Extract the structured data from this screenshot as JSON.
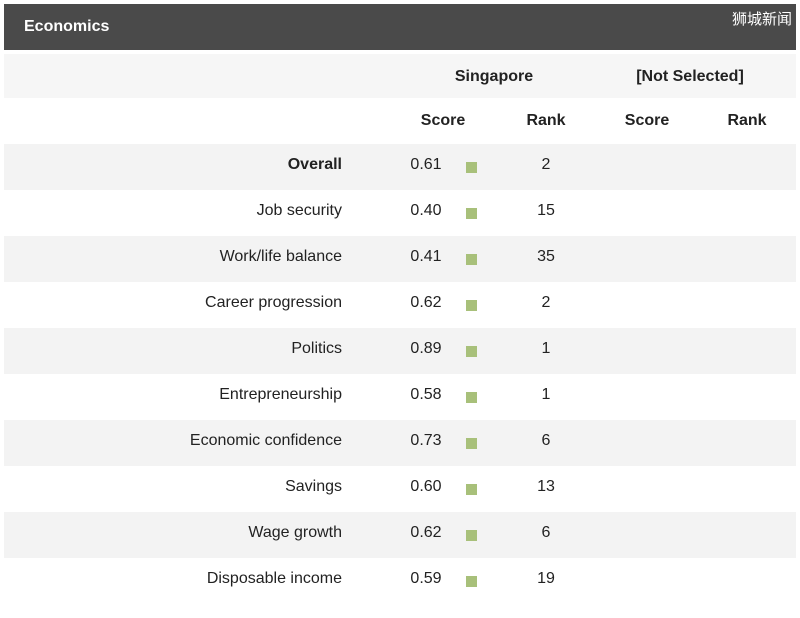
{
  "header": {
    "title": "Economics"
  },
  "watermark": "狮城新闻",
  "columns": {
    "group1": "Singapore",
    "group2": "[Not Selected]",
    "score": "Score",
    "rank": "Rank"
  },
  "colors": {
    "swatch": "#a8c07a",
    "header_bg": "#4a4a4a"
  },
  "rows": [
    {
      "label": "Overall",
      "score": "0.61",
      "rank": "2"
    },
    {
      "label": "Job security",
      "score": "0.40",
      "rank": "15"
    },
    {
      "label": "Work/life balance",
      "score": "0.41",
      "rank": "35"
    },
    {
      "label": "Career progression",
      "score": "0.62",
      "rank": "2"
    },
    {
      "label": "Politics",
      "score": "0.89",
      "rank": "1"
    },
    {
      "label": "Entrepreneurship",
      "score": "0.58",
      "rank": "1"
    },
    {
      "label": "Economic confidence",
      "score": "0.73",
      "rank": "6"
    },
    {
      "label": "Savings",
      "score": "0.60",
      "rank": "13"
    },
    {
      "label": "Wage growth",
      "score": "0.62",
      "rank": "6"
    },
    {
      "label": "Disposable income",
      "score": "0.59",
      "rank": "19"
    }
  ]
}
